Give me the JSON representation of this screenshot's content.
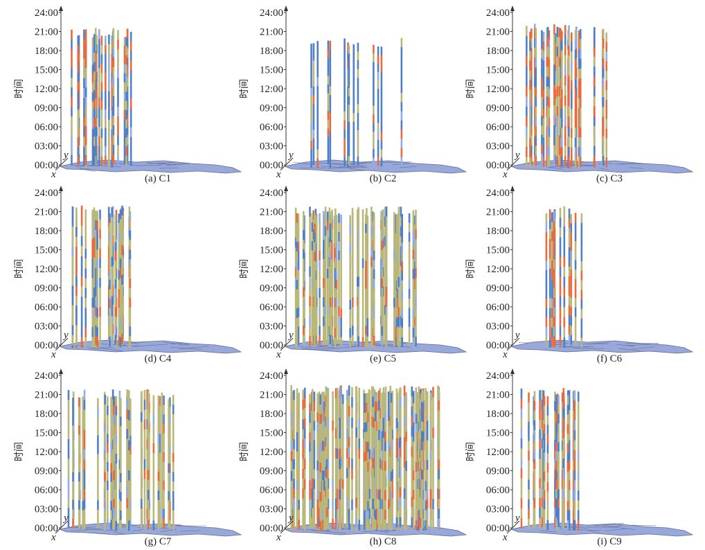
{
  "chart_data": {
    "type": "bar",
    "ylabel": "时间",
    "yticks": [
      "00:00",
      "03:00",
      "06:00",
      "09:00",
      "12:00",
      "15:00",
      "18:00",
      "21:00",
      "24:00"
    ],
    "xlabel": "x",
    "zlabel": "y",
    "colors": {
      "blue": "#4f7fc6",
      "light_blue": "#92aee0",
      "olive": "#b9b77a",
      "orange": "#e96a3c",
      "map": "#8e9fd6",
      "map_edge": "#4e5a80"
    },
    "panels": [
      {
        "caption": "(a) C1",
        "bars": 26,
        "span": [
          0.02,
          0.4
        ],
        "mix": [
          0.42,
          0.3,
          0.28
        ],
        "tall": 0.92
      },
      {
        "caption": "(b) C2",
        "bars": 14,
        "span": [
          0.12,
          0.68
        ],
        "mix": [
          0.7,
          0.2,
          0.1
        ],
        "tall": 0.85
      },
      {
        "caption": "(c) C3",
        "bars": 32,
        "span": [
          0.04,
          0.55
        ],
        "mix": [
          0.25,
          0.4,
          0.35
        ],
        "tall": 0.95
      },
      {
        "caption": "(d) C4",
        "bars": 30,
        "span": [
          0.04,
          0.4
        ],
        "mix": [
          0.3,
          0.55,
          0.15
        ],
        "tall": 0.94
      },
      {
        "caption": "(e) C5",
        "bars": 60,
        "span": [
          0.02,
          0.78
        ],
        "mix": [
          0.2,
          0.7,
          0.1
        ],
        "tall": 0.93
      },
      {
        "caption": "(f) C6",
        "bars": 12,
        "span": [
          0.16,
          0.4
        ],
        "mix": [
          0.35,
          0.25,
          0.4
        ],
        "tall": 0.94
      },
      {
        "caption": "(g) C7",
        "bars": 40,
        "span": [
          0.02,
          0.68
        ],
        "mix": [
          0.18,
          0.7,
          0.12
        ],
        "tall": 0.93
      },
      {
        "caption": "(h) C8",
        "bars": 120,
        "span": [
          0.01,
          0.9
        ],
        "mix": [
          0.15,
          0.7,
          0.15
        ],
        "tall": 0.96
      },
      {
        "caption": "(i) C9",
        "bars": 24,
        "span": [
          0.03,
          0.38
        ],
        "mix": [
          0.3,
          0.45,
          0.25
        ],
        "tall": 0.94
      }
    ]
  }
}
